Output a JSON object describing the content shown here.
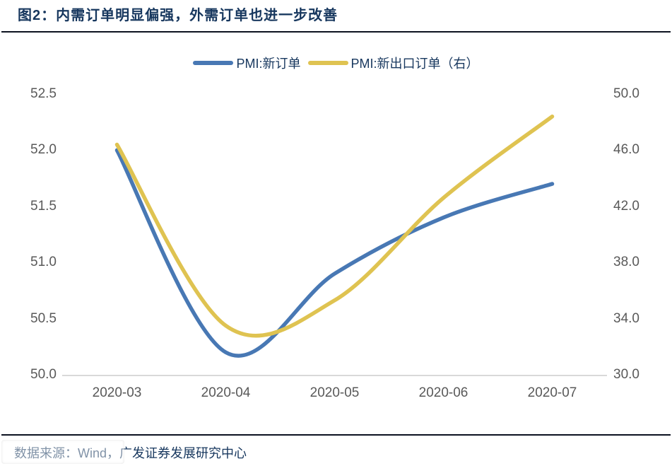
{
  "header": {
    "title": "图2：内需订单明显偏强，外需订单也进一步改善"
  },
  "chart_data": {
    "type": "line",
    "title": "图2：内需订单明显偏强，外需订单也进一步改善",
    "smooth": true,
    "grid": false,
    "legend_position": "top-center",
    "categories": [
      "2020-03",
      "2020-04",
      "2020-05",
      "2020-06",
      "2020-07"
    ],
    "series": [
      {
        "name": "PMI:新订单",
        "axis": "left",
        "color": "#4878B4",
        "values": [
          52.0,
          50.2,
          50.9,
          51.4,
          51.7
        ]
      },
      {
        "name": "PMI:新出口订单（右）",
        "axis": "right",
        "color": "#DFC351",
        "values": [
          46.4,
          33.5,
          35.3,
          42.6,
          48.4
        ]
      }
    ],
    "left_axis": {
      "ylim": [
        50.0,
        52.5
      ],
      "ticks": [
        "52.5",
        "52.0",
        "51.5",
        "51.0",
        "50.5",
        "50.0"
      ]
    },
    "right_axis": {
      "ylim": [
        30.0,
        50.0
      ],
      "ticks": [
        "50.0",
        "46.0",
        "42.0",
        "38.0",
        "34.0",
        "30.0"
      ]
    },
    "x_ticks": [
      "2020-03",
      "2020-04",
      "2020-05",
      "2020-06",
      "2020-07"
    ]
  },
  "footer": {
    "source": "数据来源：Wind，广发证券发展研究中心"
  },
  "colors": {
    "title_navy": "#17375E",
    "tick_gray": "#595959",
    "axis_line_gray": "#D9D9D9",
    "rule_black": "#0c1220"
  }
}
